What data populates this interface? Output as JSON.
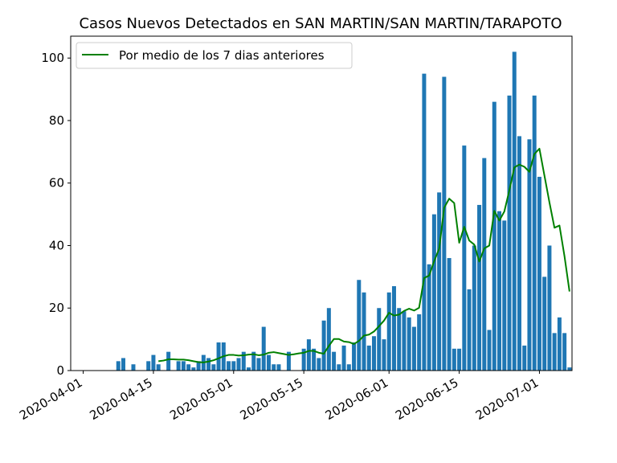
{
  "chart_data": {
    "type": "bar",
    "title": "Casos Nuevos Detectados en SAN MARTIN/SAN MARTIN/TARAPOTO",
    "xlabel": "",
    "ylabel": "",
    "x_axis": "date",
    "xlim": [
      "2020-03-30",
      "2020-07-07"
    ],
    "ylim": [
      0,
      107
    ],
    "x_ticks": [
      "2020-04-01",
      "2020-04-15",
      "2020-05-01",
      "2020-05-15",
      "2020-06-01",
      "2020-06-15",
      "2020-07-01"
    ],
    "y_ticks": [
      0,
      20,
      40,
      60,
      80,
      100
    ],
    "grid": false,
    "legend": {
      "position": "top-left",
      "entries": [
        "Por medio de los 7 dias anteriores"
      ]
    },
    "colors": {
      "bars": "#1f77b4",
      "line": "#008000"
    },
    "series": [
      {
        "type": "bar",
        "x": [
          "2020-04-08",
          "2020-04-09",
          "2020-04-11",
          "2020-04-14",
          "2020-04-15",
          "2020-04-16",
          "2020-04-18",
          "2020-04-20",
          "2020-04-21",
          "2020-04-22",
          "2020-04-23",
          "2020-04-24",
          "2020-04-25",
          "2020-04-26",
          "2020-04-27",
          "2020-04-28",
          "2020-04-29",
          "2020-04-30",
          "2020-05-01",
          "2020-05-02",
          "2020-05-03",
          "2020-05-04",
          "2020-05-05",
          "2020-05-06",
          "2020-05-07",
          "2020-05-08",
          "2020-05-09",
          "2020-05-10",
          "2020-05-12",
          "2020-05-15",
          "2020-05-16",
          "2020-05-17",
          "2020-05-18",
          "2020-05-19",
          "2020-05-20",
          "2020-05-21",
          "2020-05-22",
          "2020-05-23",
          "2020-05-24",
          "2020-05-25",
          "2020-05-26",
          "2020-05-27",
          "2020-05-28",
          "2020-05-29",
          "2020-05-30",
          "2020-05-31",
          "2020-06-01",
          "2020-06-02",
          "2020-06-03",
          "2020-06-04",
          "2020-06-05",
          "2020-06-06",
          "2020-06-07",
          "2020-06-08",
          "2020-06-09",
          "2020-06-10",
          "2020-06-11",
          "2020-06-12",
          "2020-06-13",
          "2020-06-14",
          "2020-06-15",
          "2020-06-16",
          "2020-06-17",
          "2020-06-18",
          "2020-06-19",
          "2020-06-20",
          "2020-06-21",
          "2020-06-22",
          "2020-06-23",
          "2020-06-24",
          "2020-06-25",
          "2020-06-26",
          "2020-06-27",
          "2020-06-28",
          "2020-06-29",
          "2020-06-30",
          "2020-07-01",
          "2020-07-02",
          "2020-07-03",
          "2020-07-04",
          "2020-07-05",
          "2020-07-06",
          "2020-07-07"
        ],
        "values": [
          3,
          4,
          2,
          3,
          5,
          2,
          6,
          3,
          3,
          2,
          1,
          3,
          5,
          4,
          2,
          9,
          9,
          3,
          3,
          4,
          6,
          1,
          6,
          4,
          14,
          5,
          2,
          2,
          6,
          7,
          10,
          7,
          4,
          16,
          20,
          6,
          2,
          8,
          2,
          9,
          29,
          25,
          8,
          11,
          20,
          10,
          25,
          27,
          20,
          19,
          17,
          14,
          18,
          95,
          34,
          50,
          57,
          94,
          36,
          7,
          7,
          72,
          26,
          40,
          53,
          68,
          13,
          86,
          51,
          48,
          88,
          102,
          75,
          8,
          74,
          88,
          62,
          30,
          40,
          12,
          17,
          12,
          1
        ]
      },
      {
        "type": "line",
        "name": "Por medio de los 7 dias anteriores",
        "x": [
          "2020-04-16",
          "2020-04-17",
          "2020-04-18",
          "2020-04-19",
          "2020-04-20",
          "2020-04-21",
          "2020-04-22",
          "2020-04-23",
          "2020-04-24",
          "2020-04-25",
          "2020-04-26",
          "2020-04-27",
          "2020-04-28",
          "2020-04-29",
          "2020-04-30",
          "2020-05-01",
          "2020-05-02",
          "2020-05-03",
          "2020-05-04",
          "2020-05-05",
          "2020-05-06",
          "2020-05-07",
          "2020-05-08",
          "2020-05-09",
          "2020-05-10",
          "2020-05-11",
          "2020-05-12",
          "2020-05-13",
          "2020-05-14",
          "2020-05-15",
          "2020-05-16",
          "2020-05-17",
          "2020-05-18",
          "2020-05-19",
          "2020-05-20",
          "2020-05-21",
          "2020-05-22",
          "2020-05-23",
          "2020-05-24",
          "2020-05-25",
          "2020-05-26",
          "2020-05-27",
          "2020-05-28",
          "2020-05-29",
          "2020-05-30",
          "2020-05-31",
          "2020-06-01",
          "2020-06-02",
          "2020-06-03",
          "2020-06-04",
          "2020-06-05",
          "2020-06-06",
          "2020-06-07",
          "2020-06-08",
          "2020-06-09",
          "2020-06-10",
          "2020-06-11",
          "2020-06-12",
          "2020-06-13",
          "2020-06-14",
          "2020-06-15",
          "2020-06-16",
          "2020-06-17",
          "2020-06-18",
          "2020-06-19",
          "2020-06-20",
          "2020-06-21",
          "2020-06-22",
          "2020-06-23",
          "2020-06-24",
          "2020-06-25",
          "2020-06-26",
          "2020-06-27",
          "2020-06-28",
          "2020-06-29",
          "2020-06-30",
          "2020-07-01",
          "2020-07-02",
          "2020-07-03",
          "2020-07-04",
          "2020-07-05",
          "2020-07-06",
          "2020-07-07"
        ],
        "values": [
          3,
          3.2,
          3.6,
          3.6,
          3.5,
          3.5,
          3.3,
          3,
          2.7,
          2.6,
          2.9,
          3.3,
          3.9,
          4.6,
          5,
          5,
          4.8,
          4.9,
          5.1,
          5.2,
          4.9,
          5.1,
          5.7,
          5.9,
          5.6,
          5.3,
          5,
          5.2,
          5.5,
          5.7,
          6.3,
          6.3,
          5.7,
          5.4,
          7.9,
          10.1,
          10.1,
          9.3,
          9.1,
          8.5,
          9.5,
          11.2,
          11.5,
          12.5,
          14.2,
          16,
          18.5,
          17.6,
          17.9,
          19.1,
          19.8,
          19.2,
          20.1,
          29.6,
          30.4,
          35,
          39,
          52.1,
          55,
          53.6,
          40.9,
          46,
          41.6,
          40.3,
          34.9,
          39.1,
          40,
          51.1,
          48,
          50.9,
          57.7,
          65,
          65.9,
          65.2,
          63.6,
          69.3,
          71,
          62.4,
          53.8,
          45.7,
          46.4,
          36.6,
          25.3
        ]
      }
    ]
  }
}
